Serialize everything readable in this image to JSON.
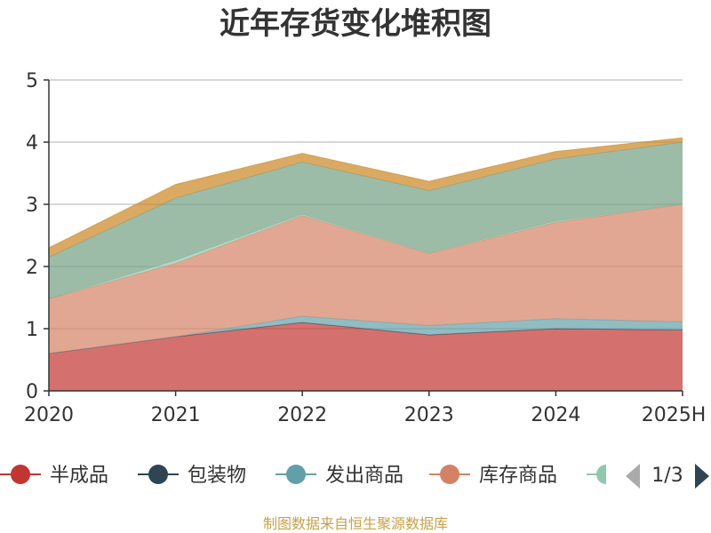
{
  "chart_data": {
    "type": "area",
    "title": "近年存货变化堆积图",
    "stacked": true,
    "categories": [
      "2020",
      "2021",
      "2022",
      "2023",
      "2024",
      "2025H"
    ],
    "ylim": [
      0,
      5
    ],
    "yticks": [
      "0",
      "1",
      "2",
      "3",
      "4",
      "5"
    ],
    "grid": true,
    "series": [
      {
        "name": "半成品",
        "color": "#c23531",
        "values": [
          0.6,
          0.87,
          1.1,
          0.9,
          1.0,
          0.98
        ]
      },
      {
        "name": "包装物",
        "color": "#2f4554",
        "values": [
          0.0,
          0.0,
          0.0,
          0.0,
          0.0,
          0.0
        ]
      },
      {
        "name": "发出商品",
        "color": "#61a0a8",
        "values": [
          0.0,
          0.0,
          0.1,
          0.15,
          0.16,
          0.13
        ]
      },
      {
        "name": "库存商品",
        "color": "#d48265",
        "values": [
          0.88,
          1.18,
          1.62,
          1.16,
          1.55,
          1.89
        ]
      },
      {
        "name": "",
        "color": "#91c7ae",
        "values": [
          0.0,
          0.05,
          0.02,
          0.01,
          0.02,
          0.0
        ]
      },
      {
        "name": "",
        "color": "#749f83",
        "values": [
          0.67,
          1.0,
          0.84,
          1.0,
          1.0,
          1.0
        ]
      },
      {
        "name": "",
        "color": "#ca8622",
        "values": [
          0.15,
          0.22,
          0.14,
          0.15,
          0.12,
          0.07
        ]
      }
    ],
    "legend": {
      "items": [
        "半成品",
        "包装物",
        "发出商品",
        "库存商品"
      ],
      "page": "1/3"
    }
  },
  "source_text": "制图数据来自恒生聚源数据库"
}
